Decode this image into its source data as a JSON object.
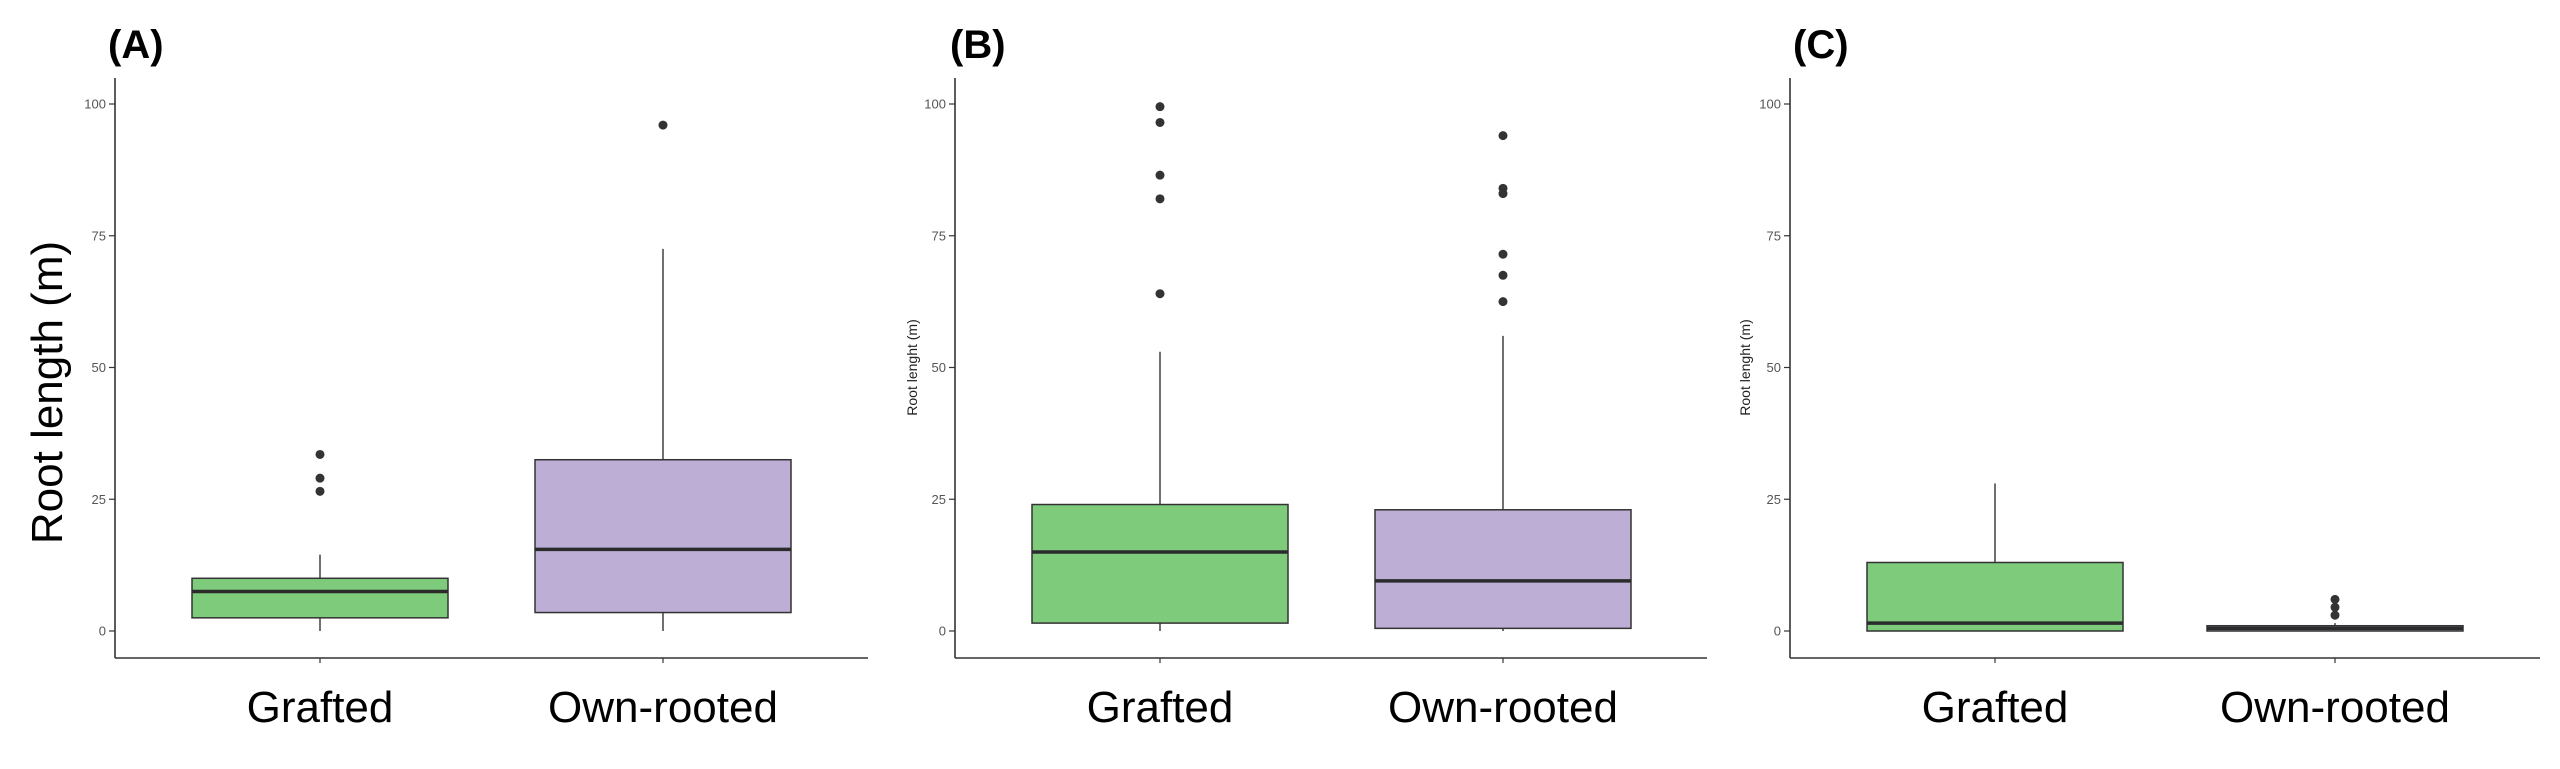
{
  "chart_data": [
    {
      "type": "box",
      "panel_label": "(A)",
      "ylabel": "Root length (m)",
      "ylim": [
        0,
        100
      ],
      "yticks": [
        0,
        25,
        50,
        75,
        100
      ],
      "grid": false,
      "categories": [
        "Grafted",
        "Own-rooted"
      ],
      "boxes": [
        {
          "category": "Grafted",
          "color": "#7fcb7c",
          "whisker_low": 0,
          "q1": 2.5,
          "median": 7.5,
          "q3": 10,
          "whisker_high": 14.5,
          "outliers": [
            26.5,
            29,
            33.5
          ]
        },
        {
          "category": "Own-rooted",
          "color": "#bcaed5",
          "whisker_low": 0,
          "q1": 3.5,
          "median": 15.5,
          "q3": 32.5,
          "whisker_high": 72.5,
          "outliers": [
            96
          ]
        }
      ]
    },
    {
      "type": "box",
      "panel_label": "(B)",
      "ylabel": "Root lenght (m)",
      "ylim": [
        0,
        100
      ],
      "yticks": [
        0,
        25,
        50,
        75,
        100
      ],
      "grid": false,
      "categories": [
        "Grafted",
        "Own-rooted"
      ],
      "boxes": [
        {
          "category": "Grafted",
          "color": "#7fcb7c",
          "whisker_low": 0,
          "q1": 1.5,
          "median": 15,
          "q3": 24,
          "whisker_high": 53,
          "outliers": [
            64,
            82,
            86.5,
            96.5,
            99.5
          ]
        },
        {
          "category": "Own-rooted",
          "color": "#bcaed5",
          "whisker_low": 0,
          "q1": 0.5,
          "median": 9.5,
          "q3": 23,
          "whisker_high": 56,
          "outliers": [
            62.5,
            67.5,
            71.5,
            83,
            84,
            94
          ]
        }
      ]
    },
    {
      "type": "box",
      "panel_label": "(C)",
      "ylabel": "Root lenght (m)",
      "ylim": [
        0,
        100
      ],
      "yticks": [
        0,
        25,
        50,
        75,
        100
      ],
      "grid": false,
      "categories": [
        "Grafted",
        "Own-rooted"
      ],
      "boxes": [
        {
          "category": "Grafted",
          "color": "#7fcb7c",
          "whisker_low": 0,
          "q1": 0,
          "median": 1.5,
          "q3": 13,
          "whisker_high": 28,
          "outliers": []
        },
        {
          "category": "Own-rooted",
          "color": "#bcaed5",
          "whisker_low": 0,
          "q1": 0,
          "median": 0.5,
          "q3": 1,
          "whisker_high": 1.5,
          "outliers": [
            3,
            4.5,
            6
          ]
        }
      ]
    }
  ]
}
